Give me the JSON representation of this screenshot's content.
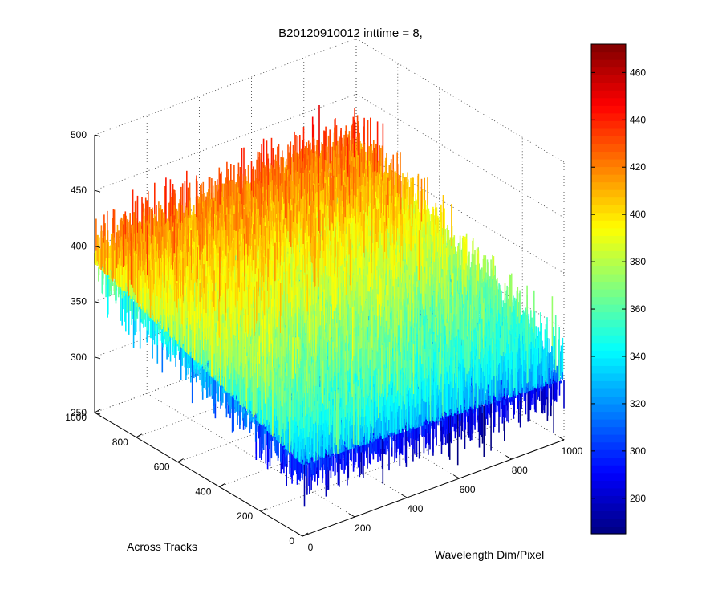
{
  "chart_data": {
    "type": "surface3d",
    "title": "B20120910012 inttime = 8,",
    "xlabel": "Wavelength Dim/Pixel",
    "ylabel": "Across Tracks",
    "zlabel": "",
    "xlim": [
      0,
      1000
    ],
    "ylim": [
      0,
      1000
    ],
    "zlim": [
      250,
      500
    ],
    "x_ticks": [
      "0",
      "200",
      "400",
      "600",
      "800",
      "1000"
    ],
    "y_ticks": [
      "0",
      "200",
      "400",
      "600",
      "800",
      "1000"
    ],
    "z_ticks": [
      "250",
      "300",
      "350",
      "400",
      "450",
      "500"
    ],
    "grid": true,
    "colormap": "jet",
    "colorbar": {
      "range": [
        265,
        472
      ],
      "ticks": [
        "280",
        "300",
        "320",
        "340",
        "360",
        "380",
        "400",
        "420",
        "440",
        "460"
      ]
    },
    "surface_corners": [
      {
        "x": 0,
        "y": 0,
        "z": 320
      },
      {
        "x": 1000,
        "y": 0,
        "z": 310
      },
      {
        "x": 0,
        "y": 1000,
        "z": 390
      },
      {
        "x": 1000,
        "y": 1000,
        "z": 400
      }
    ],
    "noise_amplitude": 40
  }
}
